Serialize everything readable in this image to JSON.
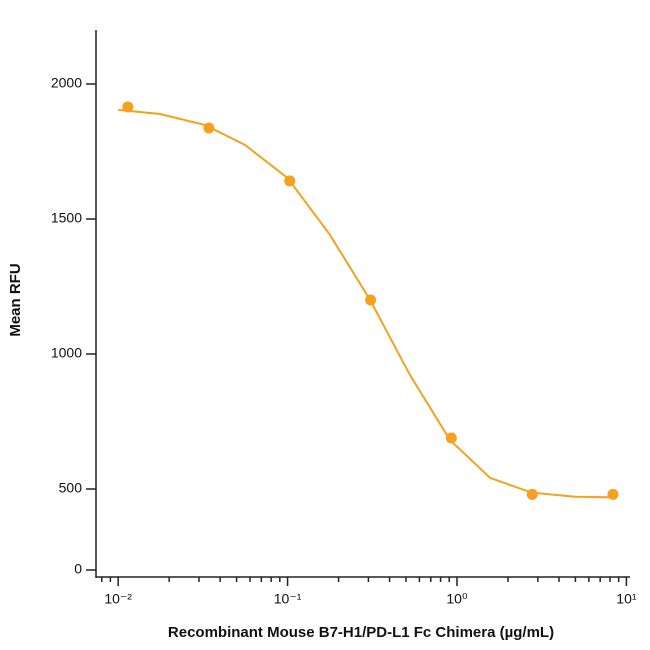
{
  "chart_data": {
    "type": "scatter",
    "xlabel": "Recombinant Mouse B7-H1/PD-L1 Fc Chimera (µg/mL)",
    "ylabel": "Mean RFU",
    "xscale": "log",
    "xlim": [
      0.0074,
      10.5
    ],
    "xticks": [
      {
        "value": 0.01,
        "label": "10⁻²"
      },
      {
        "value": 0.1,
        "label": "10⁻¹"
      },
      {
        "value": 1,
        "label": "10⁰"
      },
      {
        "value": 10,
        "label": "10¹"
      }
    ],
    "ylim": [
      0,
      2200
    ],
    "yticks": [
      0,
      500,
      1000,
      1500,
      2000
    ],
    "y_break": {
      "value": 500,
      "fraction": 0.15
    },
    "color": "#f5a01e",
    "x": [
      0.0114,
      0.0343,
      0.103,
      0.309,
      0.926,
      2.78,
      8.33
    ],
    "values": [
      1915,
      1837,
      1641,
      1200,
      689,
      467,
      467
    ],
    "fit": {
      "x": [
        0.01,
        0.0177,
        0.0326,
        0.0561,
        0.1,
        0.178,
        0.307,
        0.528,
        0.91,
        1.57,
        2.75,
        4.97,
        8.5
      ],
      "values": [
        1904,
        1889,
        1848,
        1774,
        1652,
        1441,
        1200,
        922,
        681,
        541,
        478,
        452,
        448
      ]
    }
  }
}
